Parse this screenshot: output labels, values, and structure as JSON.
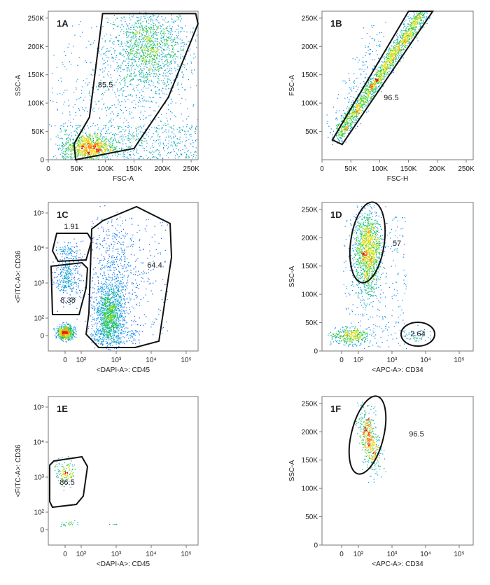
{
  "chart_data": [
    {
      "type": "scatter",
      "panel_label": "1A",
      "xlabel": "FSC-A",
      "ylabel": "SSC-A",
      "x_scale": "linear",
      "y_scale": "linear",
      "xlim": [
        0,
        262144
      ],
      "ylim": [
        0,
        262144
      ],
      "xticks": [
        0,
        50000,
        100000,
        150000,
        200000,
        250000
      ],
      "xtick_labels": [
        "0",
        "50K",
        "100K",
        "150K",
        "200K",
        "250K"
      ],
      "yticks": [
        0,
        50000,
        100000,
        150000,
        200000,
        250000
      ],
      "ytick_labels": [
        "0",
        "50K",
        "100K",
        "150K",
        "200K",
        "250K"
      ],
      "gates": [
        {
          "label": "85.5",
          "shape": "polygon",
          "vertices": [
            [
              48000,
              0
            ],
            [
              45000,
              28000
            ],
            [
              72000,
              75000
            ],
            [
              95000,
              258000
            ],
            [
              258000,
              258000
            ],
            [
              262000,
              240000
            ],
            [
              210000,
              110000
            ],
            [
              150000,
              20000
            ]
          ],
          "label_at": [
            100000,
            128000
          ]
        }
      ],
      "populations": [
        {
          "x": 175000,
          "y": 195000,
          "sx": 35000,
          "sy": 38000,
          "n": 1400
        },
        {
          "x": 70000,
          "y": 22000,
          "sx": 22000,
          "sy": 12000,
          "n": 900
        },
        {
          "x": 130000,
          "y": 95000,
          "sx": 70000,
          "sy": 70000,
          "n": 700
        }
      ]
    },
    {
      "type": "scatter",
      "panel_label": "1B",
      "xlabel": "FSC-H",
      "ylabel": "FSC-A",
      "x_scale": "linear",
      "y_scale": "linear",
      "xlim": [
        0,
        262144
      ],
      "ylim": [
        0,
        262144
      ],
      "xticks": [
        0,
        50000,
        100000,
        150000,
        200000,
        250000
      ],
      "xtick_labels": [
        "0",
        "50K",
        "100K",
        "150K",
        "200K",
        "250K"
      ],
      "yticks": [
        50000,
        100000,
        150000,
        200000,
        250000
      ],
      "ytick_labels": [
        "50K",
        "100K",
        "150K",
        "200K",
        "250K"
      ],
      "gates": [
        {
          "label": "96.5",
          "shape": "polygon",
          "vertices": [
            [
              18000,
              35000
            ],
            [
              150000,
              262000
            ],
            [
              192000,
              262000
            ],
            [
              35000,
              27000
            ]
          ],
          "label_at": [
            120000,
            105000
          ]
        }
      ],
      "diagonal_population": {
        "from": [
          25000,
          38000
        ],
        "to": [
          175000,
          262000
        ],
        "n": 2000
      }
    },
    {
      "type": "scatter",
      "panel_label": "1C",
      "xlabel": "<DAPI-A>: CD45",
      "ylabel": "<FITC-A>: CD36",
      "x_scale": "biexponential",
      "y_scale": "biexponential",
      "xticks": [
        0,
        100,
        1000,
        10000,
        100000
      ],
      "yticks": [
        0,
        100,
        1000,
        10000,
        100000
      ],
      "gates": [
        {
          "label": "1.91",
          "shape": "polygon",
          "vertices": [
            [
              -60,
              3000
            ],
            [
              -40,
              20000
            ],
            [
              250,
              22000
            ],
            [
              350,
              6000
            ],
            [
              200,
              2000
            ],
            [
              -20,
              2000
            ]
          ],
          "label_at": [
            15,
            15000
          ]
        },
        {
          "label": "8.38",
          "shape": "polygon",
          "vertices": [
            [
              -70,
              1500
            ],
            [
              -60,
              200
            ],
            [
              130,
              160
            ],
            [
              250,
              900
            ],
            [
              260,
              1400
            ],
            [
              -20,
              1500
            ]
          ],
          "label_at": [
            20,
            280
          ]
        },
        {
          "label": "64.4",
          "shape": "polygon",
          "vertices": [
            [
              350,
              500
            ],
            [
              380,
              18000
            ],
            [
              1000,
              30000
            ],
            [
              2000,
              50000
            ],
            [
              40000,
              35000
            ],
            [
              50000,
              6000
            ],
            [
              12000,
              -10
            ],
            [
              700,
              -20
            ],
            [
              300,
              20
            ]
          ],
          "label_at": [
            13000,
            2500
          ]
        }
      ]
    },
    {
      "type": "scatter",
      "panel_label": "1D",
      "xlabel": "<APC-A>: CD34",
      "ylabel": "SSC-A",
      "x_scale": "biexponential",
      "y_scale": "linear",
      "xticks": [
        0,
        100,
        1000,
        10000,
        100000
      ],
      "yticks": [
        0,
        50000,
        100000,
        150000,
        200000,
        250000
      ],
      "ytick_labels": [
        "0",
        "50K",
        "100K",
        "150K",
        "200K",
        "250K"
      ],
      "gates": [
        {
          "label": "57",
          "shape": "ellipse",
          "label_at": [
            450,
            190000
          ]
        },
        {
          "label": "2.64",
          "shape": "ellipse",
          "label_at": [
            4000,
            27000
          ]
        }
      ]
    },
    {
      "type": "scatter",
      "panel_label": "1E",
      "xlabel": "<DAPI-A>: CD45",
      "ylabel": "<FITC-A>: CD36",
      "x_scale": "biexponential",
      "y_scale": "biexponential",
      "xticks": [
        0,
        100,
        1000,
        10000,
        100000
      ],
      "yticks": [
        0,
        100,
        1000,
        10000,
        100000
      ],
      "gates": [
        {
          "label": "86.5",
          "shape": "polygon",
          "label_at": [
            10,
            800
          ]
        }
      ]
    },
    {
      "type": "scatter",
      "panel_label": "1F",
      "xlabel": "<APC-A>: CD34",
      "ylabel": "SSC-A",
      "x_scale": "biexponential",
      "y_scale": "linear",
      "xticks": [
        0,
        100,
        1000,
        10000,
        100000
      ],
      "yticks": [
        0,
        50000,
        100000,
        150000,
        200000,
        250000
      ],
      "ytick_labels": [
        "0",
        "50K",
        "100K",
        "150K",
        "200K",
        "250K"
      ],
      "gates": [
        {
          "label": "96.5",
          "shape": "ellipse",
          "label_at": [
            3000,
            200000
          ]
        }
      ]
    }
  ]
}
